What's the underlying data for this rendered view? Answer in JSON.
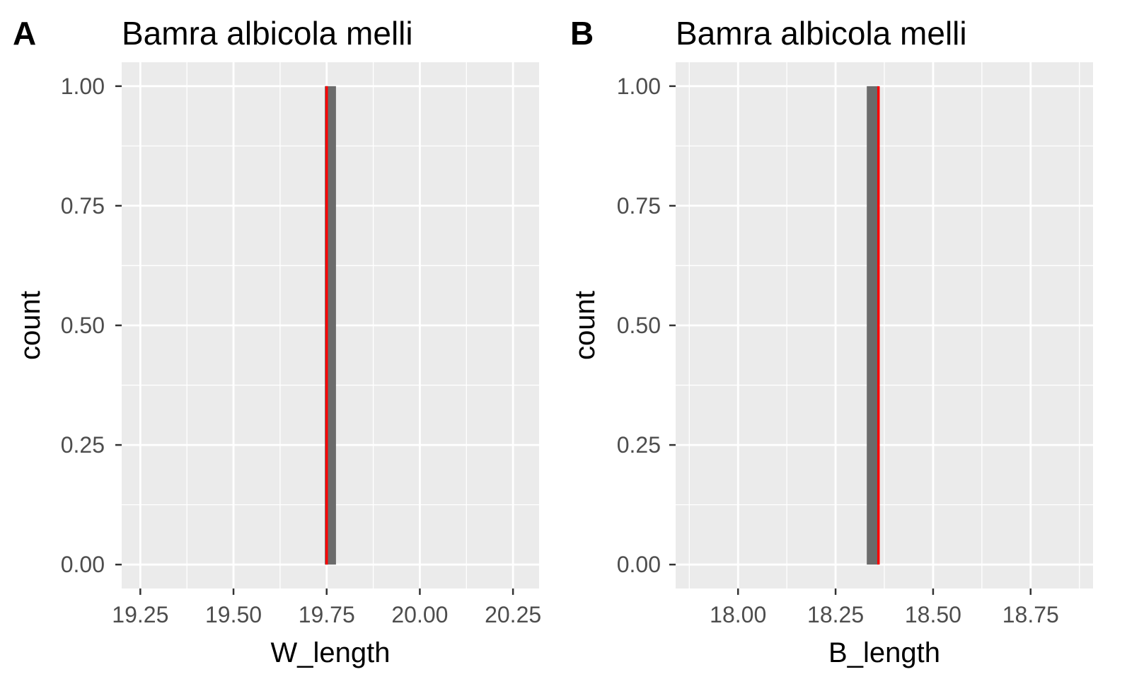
{
  "chart_data": [
    {
      "type": "bar",
      "panel_label": "A",
      "title": "Bamra albicola melli",
      "xlabel": "W_length",
      "ylabel": "count",
      "xlim": [
        19.2,
        20.32
      ],
      "ylim": [
        -0.05,
        1.05
      ],
      "x_ticks": [
        19.25,
        19.5,
        19.75,
        20.0,
        20.25
      ],
      "x_tick_labels": [
        "19.25",
        "19.50",
        "19.75",
        "20.00",
        "20.25"
      ],
      "y_ticks": [
        0,
        0.25,
        0.5,
        0.75,
        1.0
      ],
      "y_tick_labels": [
        "0.00",
        "0.25",
        "0.50",
        "0.75",
        "1.00"
      ],
      "bars": [
        {
          "x0": 19.745,
          "x1": 19.775,
          "count": 1
        }
      ],
      "bar_color": "#6b6b6b",
      "vline": {
        "x": 19.75,
        "color": "#ff0000"
      },
      "grid": true,
      "panel_background": "#ebebeb"
    },
    {
      "type": "bar",
      "panel_label": "B",
      "title": "Bamra albicola melli",
      "xlabel": "B_length",
      "ylabel": "count",
      "xlim": [
        17.84,
        18.91
      ],
      "ylim": [
        -0.05,
        1.05
      ],
      "x_ticks": [
        18.0,
        18.25,
        18.5,
        18.75
      ],
      "x_tick_labels": [
        "18.00",
        "18.25",
        "18.50",
        "18.75"
      ],
      "y_ticks": [
        0,
        0.25,
        0.5,
        0.75,
        1.0
      ],
      "y_tick_labels": [
        "0.00",
        "0.25",
        "0.50",
        "0.75",
        "1.00"
      ],
      "bars": [
        {
          "x0": 18.33,
          "x1": 18.36,
          "count": 1
        }
      ],
      "bar_color": "#6b6b6b",
      "vline": {
        "x": 18.36,
        "color": "#ff0000"
      },
      "grid": true,
      "panel_background": "#ebebeb"
    }
  ]
}
